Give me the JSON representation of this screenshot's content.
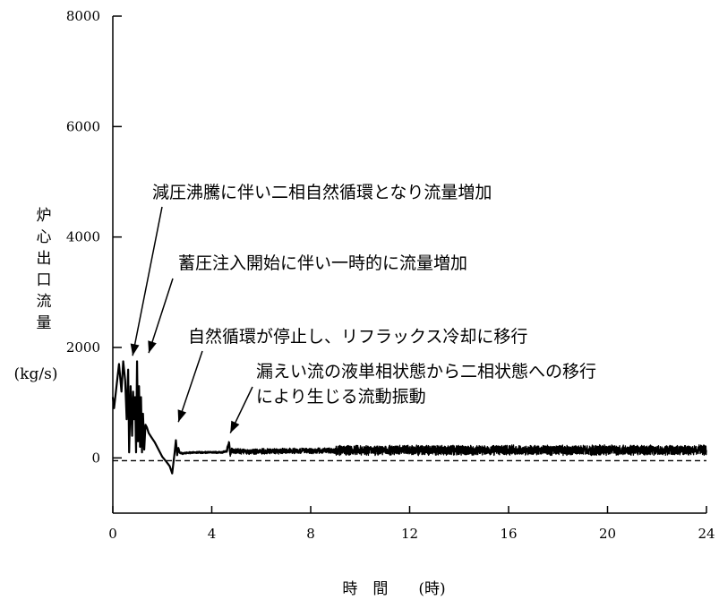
{
  "chart_data": {
    "type": "line",
    "xlabel": "時　間　　(時)",
    "ylabel_chars": [
      "炉",
      "心",
      "出",
      "口",
      "流",
      "量"
    ],
    "ylabel_unit": "(kg/s)",
    "xlim": [
      0,
      24
    ],
    "ylim": [
      -1000,
      8000
    ],
    "xticks": [
      0,
      4,
      8,
      12,
      16,
      20,
      24
    ],
    "yticks": [
      0,
      2000,
      4000,
      6000,
      8000
    ],
    "reference_line": {
      "y": -50,
      "style": "dashed"
    },
    "series": [
      {
        "x": [
          0,
          0.05,
          0.15,
          0.25,
          0.35,
          0.42,
          0.5,
          0.56,
          0.62,
          0.66,
          0.72,
          0.78,
          0.82,
          0.86,
          0.9,
          0.94,
          0.98,
          1.02,
          1.06,
          1.1,
          1.14,
          1.18,
          1.22,
          1.27,
          1.32,
          1.38,
          1.45,
          1.55,
          1.7,
          1.85,
          2.0,
          2.15,
          2.3,
          2.4,
          2.5,
          2.55,
          2.6,
          2.65,
          2.7,
          2.8,
          3.0,
          3.3,
          3.6,
          4.0,
          4.4,
          4.6,
          4.7,
          4.75,
          4.8,
          4.9,
          5.0,
          5.5,
          6.0,
          8.0,
          12.0,
          16.0,
          20.0,
          24.0
        ],
        "y": [
          1100,
          900,
          1300,
          1700,
          1200,
          1750,
          1400,
          700,
          1600,
          100,
          1300,
          400,
          1200,
          700,
          1100,
          100,
          1750,
          300,
          1300,
          200,
          1100,
          100,
          800,
          150,
          600,
          550,
          450,
          380,
          280,
          150,
          20,
          -60,
          -150,
          -280,
          100,
          320,
          50,
          180,
          100,
          80,
          90,
          100,
          100,
          100,
          100,
          120,
          280,
          60,
          150,
          120,
          120,
          110,
          120,
          130,
          140,
          140,
          140,
          140
        ],
        "noise_amplitude": [
          {
            "x_from": 2.5,
            "x_to": 4.6,
            "amp": 20
          },
          {
            "x_from": 4.6,
            "x_to": 9.0,
            "amp": 50
          },
          {
            "x_from": 9.0,
            "x_to": 24.0,
            "amp": 90
          }
        ]
      }
    ],
    "annotations": [
      {
        "text": "減圧沸騰に伴い二相自然循環となり流量増加",
        "arrow_to_x": 0.8,
        "arrow_to_y": 1850
      },
      {
        "text": "蓄圧注入開始に伴い一時的に流量増加",
        "arrow_to_x": 1.45,
        "arrow_to_y": 1900
      },
      {
        "text": "自然循環が停止し、リフラックス冷却に移行",
        "arrow_to_x": 2.65,
        "arrow_to_y": 650
      },
      {
        "text": "漏えい流の液単相状態から二相状態への移行",
        "arrow_to_x": 4.75,
        "arrow_to_y": 450
      },
      {
        "text": "により生じる流動振動",
        "arrow_to_x": null,
        "arrow_to_y": null
      }
    ]
  }
}
